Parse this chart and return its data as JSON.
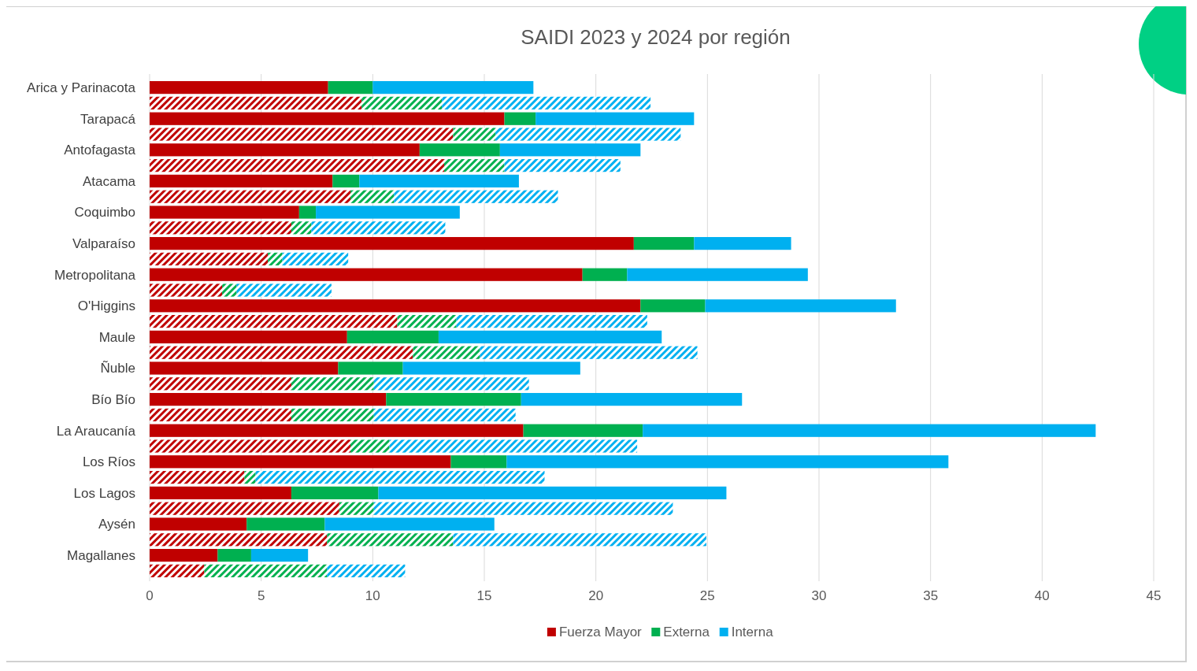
{
  "chart_data": {
    "type": "bar",
    "orientation": "horizontal",
    "stacked": true,
    "title": "SAIDI 2023 y 2024 por región",
    "categories": [
      "Arica y Parinacota",
      null,
      "Tarapacá",
      null,
      "Antofagasta",
      null,
      "Atacama",
      null,
      "Coquimbo",
      null,
      "Valparaíso",
      null,
      "Metropolitana",
      null,
      "O'Higgins",
      null,
      "Maule",
      null,
      "Ñuble",
      null,
      "Bío Bío",
      null,
      "La Araucanía",
      null,
      "Los Ríos",
      null,
      "Los Lagos",
      null,
      "Aysén",
      null,
      "Magallanes",
      null
    ],
    "series": [
      {
        "name": "Fuerza Mayor",
        "color": "#c00000",
        "values": [
          8.0,
          null,
          15.9,
          null,
          12.1,
          null,
          8.2,
          null,
          6.7,
          null,
          21.7,
          null,
          19.4,
          null,
          22.0,
          null,
          8.85,
          null,
          8.45,
          null,
          10.6,
          null,
          16.75,
          null,
          13.5,
          null,
          6.35,
          null,
          4.35,
          null,
          3.05,
          null
        ]
      },
      {
        "name": "Externa",
        "color": "#00b050",
        "values": [
          2.0,
          null,
          1.4,
          null,
          3.6,
          null,
          1.2,
          null,
          0.75,
          null,
          2.7,
          null,
          2.0,
          null,
          2.9,
          null,
          4.1,
          null,
          2.9,
          null,
          6.05,
          null,
          5.35,
          null,
          2.5,
          null,
          3.9,
          null,
          3.5,
          null,
          1.5,
          null
        ]
      },
      {
        "name": "Interna",
        "color": "#00b0f0",
        "values": [
          7.2,
          null,
          7.1,
          null,
          6.3,
          null,
          7.15,
          null,
          6.45,
          null,
          4.35,
          null,
          8.1,
          null,
          8.55,
          null,
          10.0,
          null,
          7.95,
          null,
          9.9,
          null,
          20.3,
          null,
          19.8,
          null,
          15.6,
          null,
          7.6,
          null,
          2.55,
          null
        ]
      },
      {
        "color": "#c00000",
        "values": [
          null,
          9.5,
          null,
          13.6,
          null,
          13.2,
          null,
          9.0,
          null,
          6.35,
          null,
          5.3,
          null,
          3.25,
          null,
          11.1,
          null,
          11.8,
          null,
          6.35,
          null,
          6.35,
          null,
          9.0,
          null,
          4.25,
          null,
          8.5,
          null,
          7.95,
          null,
          2.45
        ]
      },
      {
        "color": "#00b050",
        "values": [
          null,
          3.6,
          null,
          1.9,
          null,
          2.7,
          null,
          1.95,
          null,
          0.9,
          null,
          0.65,
          null,
          0.65,
          null,
          2.65,
          null,
          3.0,
          null,
          3.7,
          null,
          3.7,
          null,
          1.75,
          null,
          0.5,
          null,
          1.55,
          null,
          5.65,
          null,
          5.5
        ]
      },
      {
        "color": "#00b0f0",
        "values": [
          null,
          9.35,
          null,
          8.3,
          null,
          5.2,
          null,
          7.35,
          null,
          6.0,
          null,
          2.95,
          null,
          4.25,
          null,
          8.55,
          null,
          9.75,
          null,
          6.95,
          null,
          6.35,
          null,
          11.1,
          null,
          12.95,
          null,
          13.4,
          null,
          11.35,
          null,
          3.5
        ]
      }
    ],
    "xlim": [
      0,
      45
    ],
    "xticks": [
      0,
      5,
      10,
      15,
      20,
      25,
      30,
      35,
      40,
      45
    ],
    "grid": "x",
    "legend": "bottom"
  }
}
